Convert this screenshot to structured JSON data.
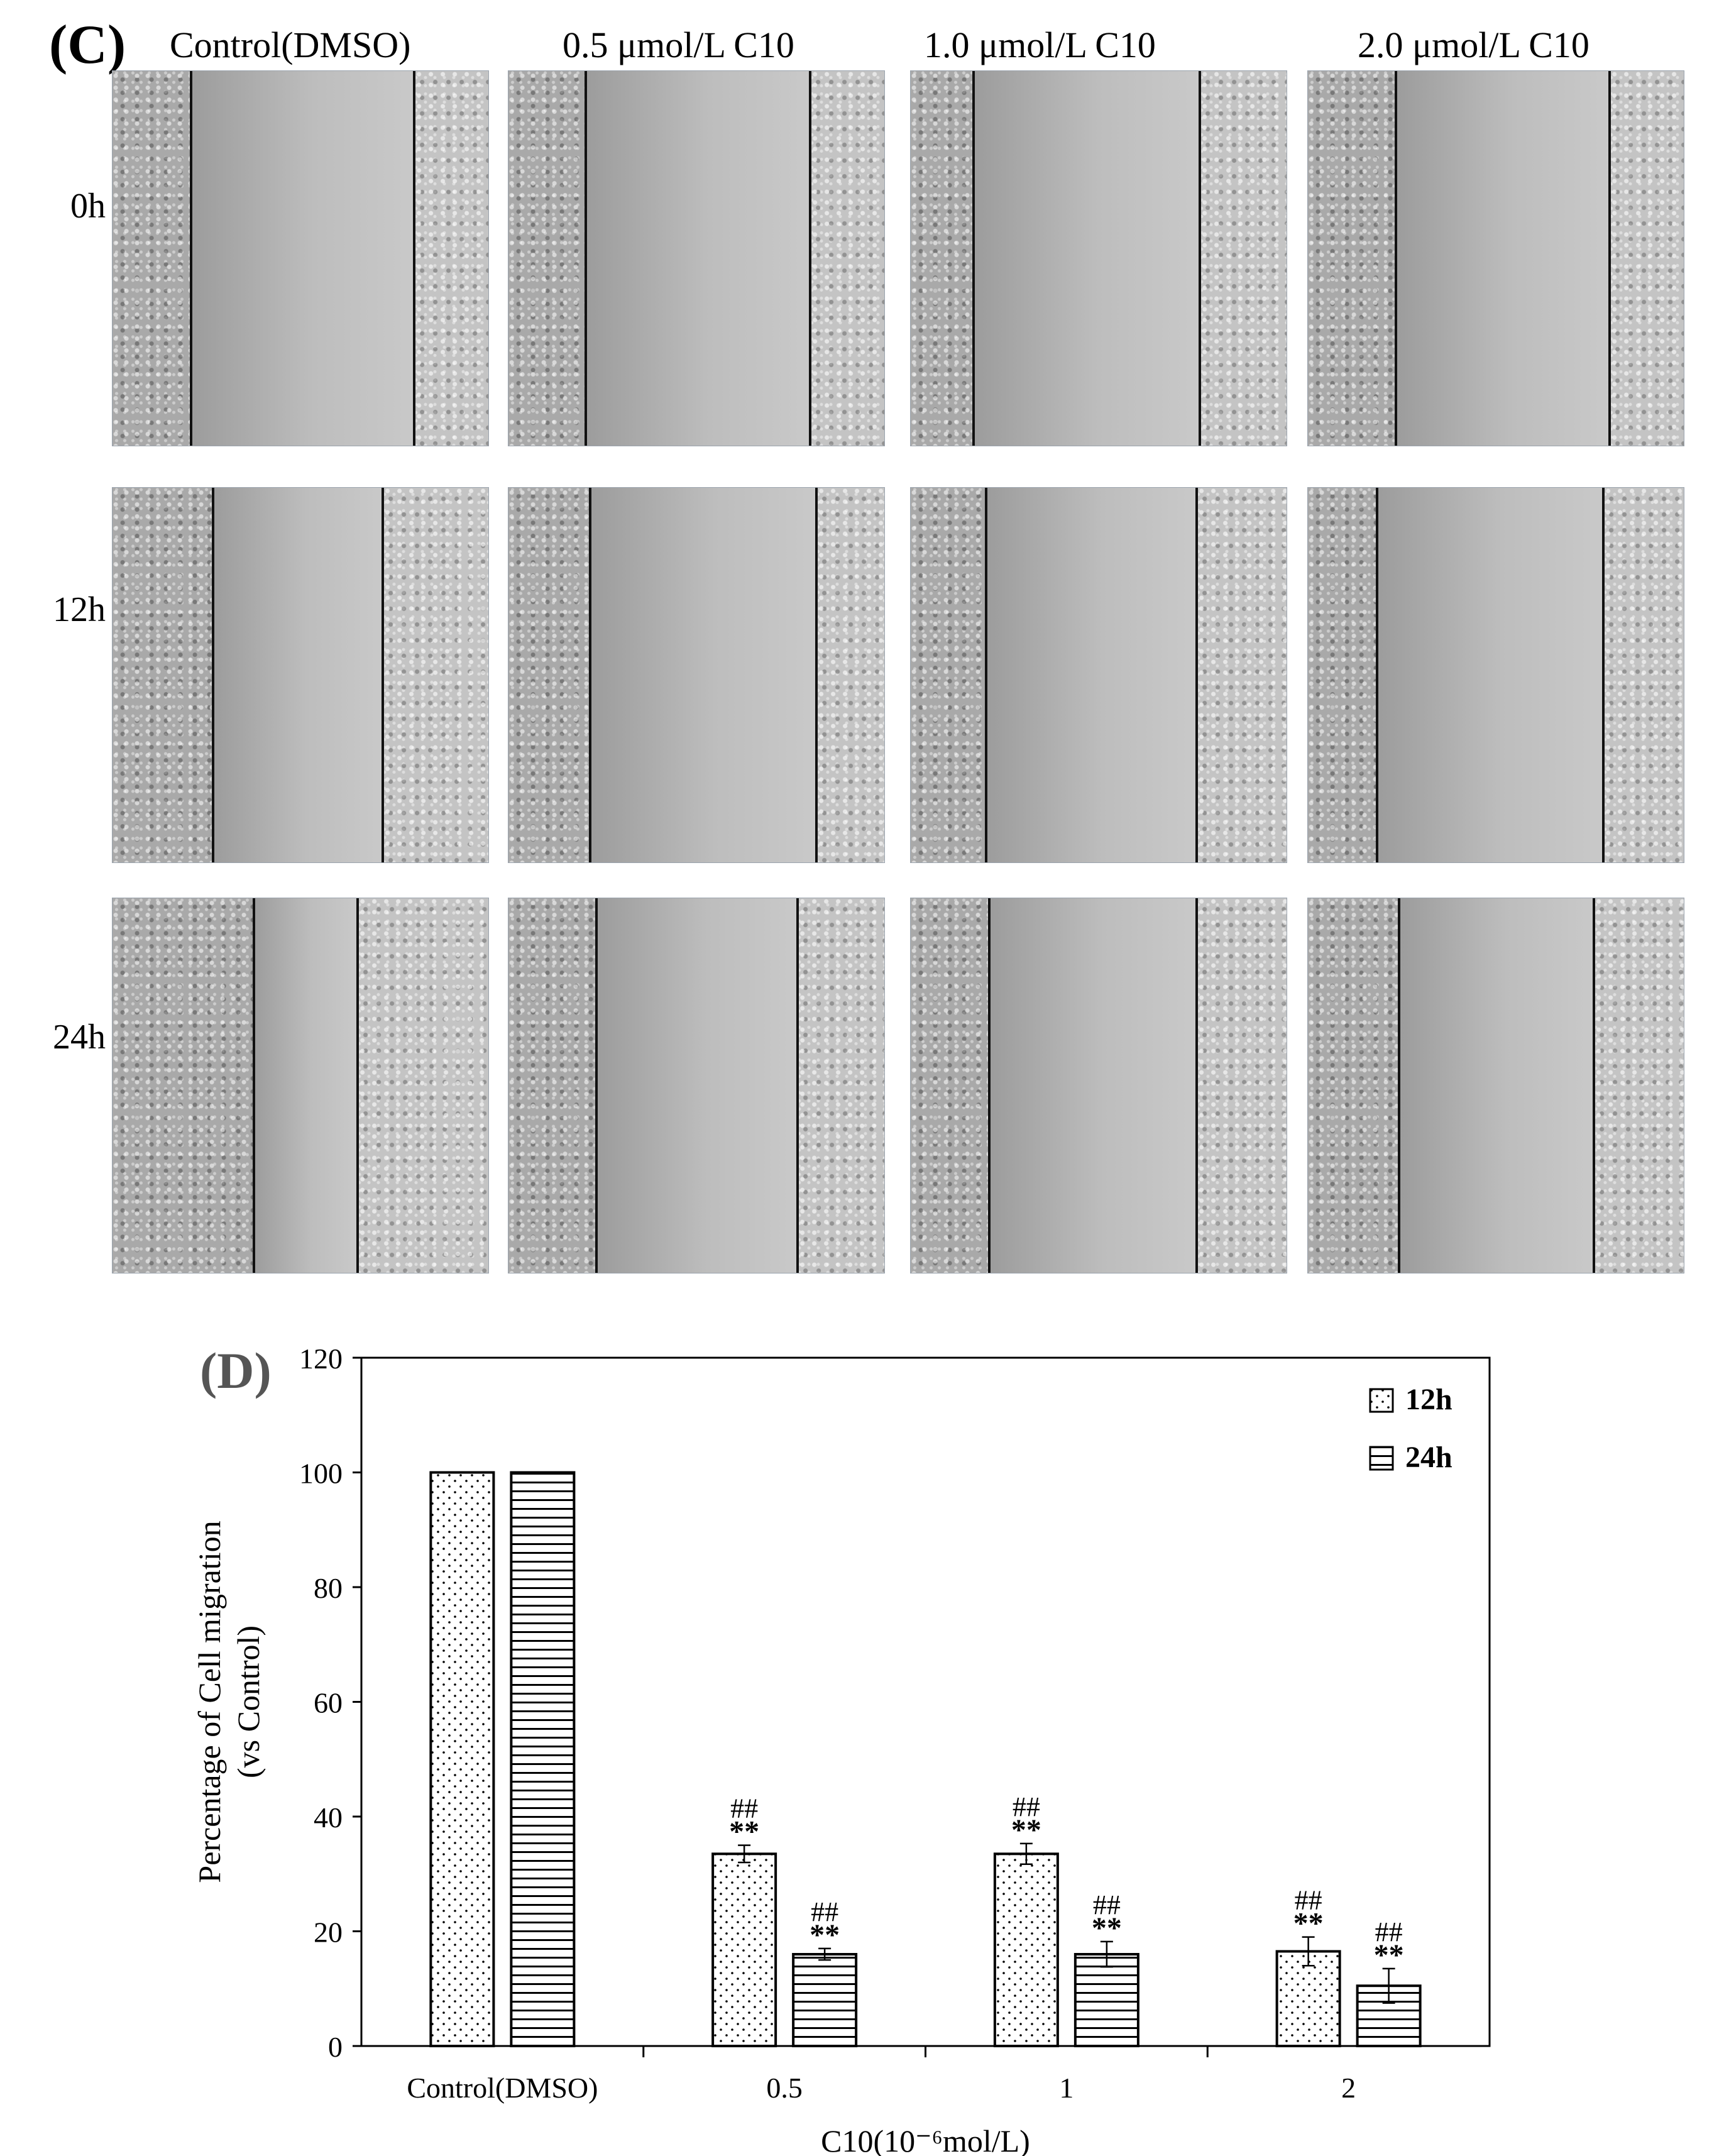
{
  "panel_c": {
    "label": "(C)",
    "columns": [
      "Control(DMSO)",
      "0.5 μmol/L C10",
      "1.0 μmol/L C10",
      "2.0 μmol/L C10"
    ],
    "rows": [
      "0h",
      "12h",
      "24h"
    ]
  },
  "panel_d": {
    "label": "(D)"
  },
  "chart_data": {
    "type": "bar",
    "title": "",
    "categories": [
      "Control(DMSO)",
      "0.5",
      "1",
      "2"
    ],
    "series": [
      {
        "name": "12h",
        "pattern": "dots",
        "values": [
          100,
          33.5,
          33.5,
          16.5
        ],
        "errors": [
          0,
          1.5,
          1.8,
          2.5
        ]
      },
      {
        "name": "24h",
        "pattern": "horizontal-lines",
        "values": [
          100,
          16,
          16,
          10.5
        ],
        "errors": [
          0,
          1.0,
          2.2,
          3.0
        ]
      }
    ],
    "annotations": {
      "12h": [
        [
          "",
          ""
        ],
        [
          "##",
          "**"
        ],
        [
          "##",
          "**"
        ],
        [
          "##",
          "**"
        ]
      ],
      "24h": [
        [
          "",
          ""
        ],
        [
          "##",
          "**"
        ],
        [
          "##",
          "**"
        ],
        [
          "##",
          "**"
        ]
      ]
    },
    "xlabel": "C10(10⁻⁶mol/L)",
    "ylabel_lines": [
      "Percentage of Cell migration",
      "(vs Control)"
    ],
    "ylim": [
      0,
      120
    ],
    "yticks": [
      0,
      20,
      40,
      60,
      80,
      100,
      120
    ],
    "grid": false,
    "legend_position": "top-right"
  }
}
